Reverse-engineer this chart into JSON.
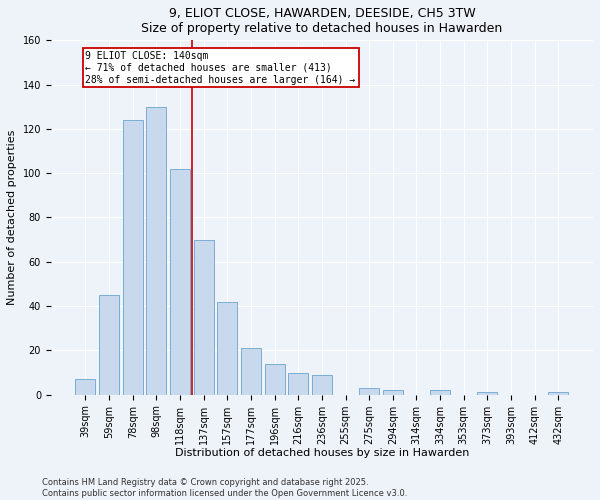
{
  "title1": "9, ELIOT CLOSE, HAWARDEN, DEESIDE, CH5 3TW",
  "title2": "Size of property relative to detached houses in Hawarden",
  "xlabel": "Distribution of detached houses by size in Hawarden",
  "ylabel": "Number of detached properties",
  "categories": [
    "39sqm",
    "59sqm",
    "78sqm",
    "98sqm",
    "118sqm",
    "137sqm",
    "157sqm",
    "177sqm",
    "196sqm",
    "216sqm",
    "236sqm",
    "255sqm",
    "275sqm",
    "294sqm",
    "314sqm",
    "334sqm",
    "353sqm",
    "373sqm",
    "393sqm",
    "412sqm",
    "432sqm"
  ],
  "values": [
    7,
    45,
    124,
    130,
    102,
    70,
    42,
    21,
    14,
    10,
    9,
    0,
    3,
    2,
    0,
    2,
    0,
    1,
    0,
    0,
    1
  ],
  "bar_color": "#c9d9ed",
  "bar_edge_color": "#7aadd4",
  "vline_color": "#cc0000",
  "annotation_text": "9 ELIOT CLOSE: 140sqm\n← 71% of detached houses are smaller (413)\n28% of semi-detached houses are larger (164) →",
  "annotation_box_edge": "#cc0000",
  "ylim": [
    0,
    160
  ],
  "yticks": [
    0,
    20,
    40,
    60,
    80,
    100,
    120,
    140,
    160
  ],
  "footer1": "Contains HM Land Registry data © Crown copyright and database right 2025.",
  "footer2": "Contains public sector information licensed under the Open Government Licence v3.0.",
  "background_color": "#eef2f9",
  "plot_background": "#eef2f9",
  "grid_color": "#ffffff",
  "title_fontsize": 9,
  "label_fontsize": 8,
  "tick_fontsize": 7,
  "annotation_fontsize": 7
}
